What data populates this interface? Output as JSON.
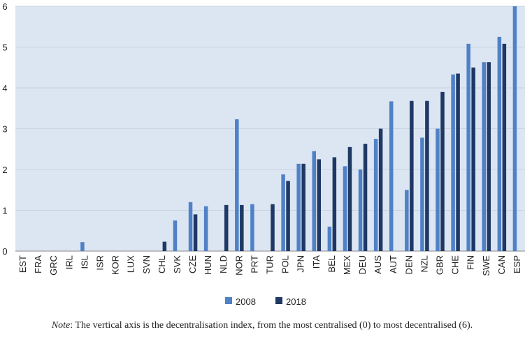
{
  "chart_data": {
    "type": "bar",
    "categories": [
      "EST",
      "FRA",
      "GRC",
      "IRL",
      "ISL",
      "ISR",
      "KOR",
      "LUX",
      "SVN",
      "CHL",
      "SVK",
      "CZE",
      "HUN",
      "NLD",
      "NOR",
      "PRT",
      "TUR",
      "POL",
      "JPN",
      "ITA",
      "BEL",
      "MEX",
      "DEU",
      "AUS",
      "AUT",
      "DEN",
      "NZL",
      "GBR",
      "CHE",
      "FIN",
      "SWE",
      "CAN",
      "ESP"
    ],
    "series": [
      {
        "name": "2008",
        "color": "#4f81c7",
        "values": [
          0,
          0,
          0,
          0,
          0.22,
          0,
          0,
          0,
          0,
          0,
          0.75,
          1.2,
          1.1,
          0,
          3.23,
          1.15,
          0,
          1.88,
          2.14,
          2.45,
          0.6,
          2.08,
          2.0,
          2.75,
          3.67,
          1.5,
          2.78,
          3.0,
          4.33,
          5.08,
          4.63,
          5.25,
          6
        ]
      },
      {
        "name": "2018",
        "color": "#1f3864",
        "values": [
          0,
          0,
          0,
          0,
          0,
          0,
          0,
          0,
          0,
          0.23,
          0,
          0.9,
          0,
          1.13,
          1.13,
          0,
          1.15,
          1.72,
          2.14,
          2.25,
          2.3,
          2.55,
          2.63,
          3.0,
          0,
          3.68,
          3.68,
          3.9,
          4.35,
          4.5,
          4.63,
          5.08,
          0
        ]
      }
    ],
    "ylim": [
      0,
      6
    ],
    "yticks": [
      0,
      1,
      2,
      3,
      4,
      5,
      6
    ],
    "grid": true,
    "legend": "bottom",
    "note_label": "Note",
    "note": ": The vertical axis is the decentralisation index, from the most centralised (0) to most decentralised (6)."
  }
}
